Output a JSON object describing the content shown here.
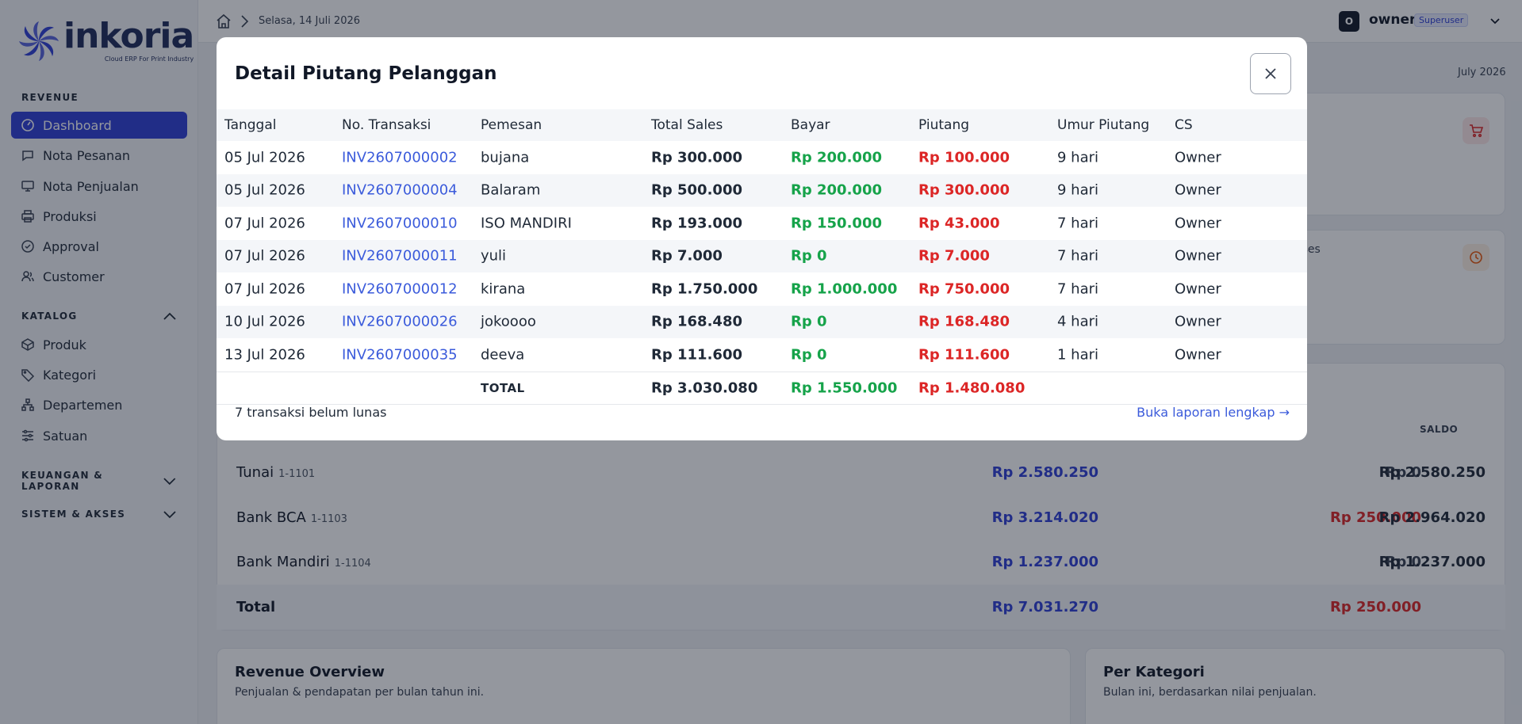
{
  "brand": {
    "name": "inkoria",
    "tagline": "Cloud ERP For Print Industry",
    "accent": "#2f3fd6"
  },
  "sidebar": {
    "sections": [
      {
        "label": "REVENUE",
        "expanded": true
      },
      {
        "label": "KATALOG",
        "expanded": true
      },
      {
        "label": "KEUANGAN & LAPORAN",
        "expanded": false
      },
      {
        "label": "SISTEM & AKSES",
        "expanded": false
      }
    ],
    "revenue_items": [
      {
        "label": "Dashboard",
        "icon": "dashboard-icon",
        "active": true
      },
      {
        "label": "Nota Pesanan",
        "icon": "chat-icon"
      },
      {
        "label": "Nota Penjualan",
        "icon": "monitor-icon"
      },
      {
        "label": "Produksi",
        "icon": "printer-icon"
      },
      {
        "label": "Approval",
        "icon": "check-circle-icon"
      },
      {
        "label": "Customer",
        "icon": "users-icon"
      }
    ],
    "katalog_items": [
      {
        "label": "Produk",
        "icon": "box-icon"
      },
      {
        "label": "Kategori",
        "icon": "tag-icon"
      },
      {
        "label": "Departemen",
        "icon": "sitemap-icon"
      },
      {
        "label": "Satuan",
        "icon": "sliders-icon"
      }
    ]
  },
  "header": {
    "date": "Selasa, 14 Juli 2026",
    "user_initial": "O",
    "user_name": "owner",
    "user_role": "Superuser"
  },
  "main": {
    "month": "July 2026",
    "partial_text": "oses",
    "kas": {
      "saldo_header": "SALDO",
      "rows": [
        {
          "name": "Tunai",
          "code": "1-1101",
          "masuk": "Rp 2.580.250",
          "keluar": "Rp 0",
          "saldo": "Rp 2.580.250"
        },
        {
          "name": "Bank BCA",
          "code": "1-1103",
          "masuk": "Rp 3.214.020",
          "keluar": "Rp 250.000",
          "saldo": "Rp 2.964.020"
        },
        {
          "name": "Bank Mandiri",
          "code": "1-1104",
          "masuk": "Rp 1.237.000",
          "keluar": "Rp 0",
          "saldo": "Rp 1.237.000"
        }
      ],
      "total": {
        "label": "Total",
        "masuk": "Rp 7.031.270",
        "keluar": "Rp 250.000"
      }
    },
    "revenue_overview": {
      "title": "Revenue Overview",
      "subtitle": "Penjualan & pendapatan per bulan tahun ini."
    },
    "per_kategori": {
      "title": "Per Kategori",
      "subtitle": "Bulan ini, berdasarkan nilai penjualan."
    }
  },
  "modal": {
    "title": "Detail Piutang Pelanggan",
    "columns": [
      "Tanggal",
      "No. Transaksi",
      "Pemesan",
      "Total Sales",
      "Bayar",
      "Piutang",
      "Umur Piutang",
      "CS"
    ],
    "rows": [
      {
        "tanggal": "05 Jul 2026",
        "no": "INV2607000002",
        "pemesan": "bujana",
        "total": "Rp 300.000",
        "bayar": "Rp 200.000",
        "piutang": "Rp 100.000",
        "umur": "9 hari",
        "cs": "Owner"
      },
      {
        "tanggal": "05 Jul 2026",
        "no": "INV2607000004",
        "pemesan": "Balaram",
        "total": "Rp 500.000",
        "bayar": "Rp 200.000",
        "piutang": "Rp 300.000",
        "umur": "9 hari",
        "cs": "Owner"
      },
      {
        "tanggal": "07 Jul 2026",
        "no": "INV2607000010",
        "pemesan": "ISO MANDIRI",
        "total": "Rp 193.000",
        "bayar": "Rp 150.000",
        "piutang": "Rp 43.000",
        "umur": "7 hari",
        "cs": "Owner"
      },
      {
        "tanggal": "07 Jul 2026",
        "no": "INV2607000011",
        "pemesan": "yuli",
        "total": "Rp 7.000",
        "bayar": "Rp 0",
        "piutang": "Rp 7.000",
        "umur": "7 hari",
        "cs": "Owner"
      },
      {
        "tanggal": "07 Jul 2026",
        "no": "INV2607000012",
        "pemesan": "kirana",
        "total": "Rp 1.750.000",
        "bayar": "Rp 1.000.000",
        "piutang": "Rp 750.000",
        "umur": "7 hari",
        "cs": "Owner"
      },
      {
        "tanggal": "10 Jul 2026",
        "no": "INV2607000026",
        "pemesan": "jokoooo",
        "total": "Rp 168.480",
        "bayar": "Rp 0",
        "piutang": "Rp 168.480",
        "umur": "4 hari",
        "cs": "Owner"
      },
      {
        "tanggal": "13 Jul 2026",
        "no": "INV2607000035",
        "pemesan": "deeva",
        "total": "Rp 111.600",
        "bayar": "Rp 0",
        "piutang": "Rp 111.600",
        "umur": "1 hari",
        "cs": "Owner"
      }
    ],
    "total": {
      "label": "TOTAL",
      "total": "Rp 3.030.080",
      "bayar": "Rp 1.550.000",
      "piutang": "Rp 1.480.080"
    },
    "footer_count": "7 transaksi belum lunas",
    "footer_link": "Buka laporan lengkap →"
  }
}
